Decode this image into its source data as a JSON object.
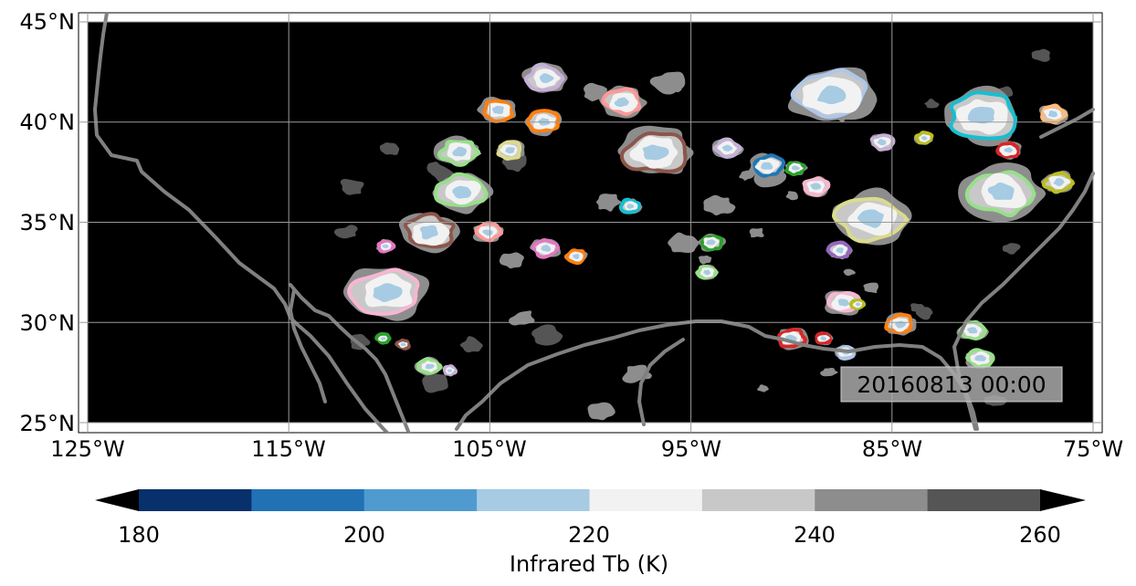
{
  "map": {
    "lat_labels": [
      "45°N",
      "40°N",
      "35°N",
      "30°N",
      "25°N"
    ],
    "lon_labels": [
      "125°W",
      "115°W",
      "105°W",
      "95°W",
      "85°W",
      "75°W"
    ],
    "lon_range": [
      -125,
      -75
    ],
    "lat_range": [
      24.5,
      45.5
    ],
    "gridlines": true,
    "background_color": "#000000",
    "coastline_color": "#808080",
    "timestamp": "20160813 00:00",
    "timestamp_position": "bottom-right"
  },
  "colorbar": {
    "label": "Infrared Tb (K)",
    "ticks": [
      "180",
      "200",
      "220",
      "240",
      "260"
    ],
    "range": [
      180,
      260
    ],
    "levels": [
      180,
      190,
      200,
      210,
      220,
      230,
      240,
      250,
      260
    ],
    "colors": [
      "#08306b",
      "#2171b5",
      "#4f9bcf",
      "#a6cbe3",
      "#f2f2f2",
      "#c8c8c8",
      "#8d8d8d",
      "#555555"
    ],
    "extend": "both",
    "low_extend_color": "#000000",
    "high_extend_color": "#000000"
  },
  "cloud_systems": [
    {
      "lon": -102.2,
      "lat": 42.2,
      "outline": "#c5b0d5"
    },
    {
      "lon": -104.6,
      "lat": 40.6,
      "outline": "#ff7f0e"
    },
    {
      "lon": -102.3,
      "lat": 40.0,
      "outline": "#ff7f0e"
    },
    {
      "lon": -98.4,
      "lat": 41.0,
      "outline": "#ff9896"
    },
    {
      "lon": -96.8,
      "lat": 38.5,
      "outline": "#8c564b"
    },
    {
      "lon": -88.0,
      "lat": 41.3,
      "outline": "#aec7e8"
    },
    {
      "lon": -80.5,
      "lat": 40.3,
      "outline": "#17becf"
    },
    {
      "lon": -77.0,
      "lat": 40.4,
      "outline": "#ffbb78"
    },
    {
      "lon": -106.5,
      "lat": 38.5,
      "outline": "#98df8a"
    },
    {
      "lon": -104.0,
      "lat": 38.6,
      "outline": "#dbdb8d"
    },
    {
      "lon": -106.4,
      "lat": 36.5,
      "outline": "#98df8a"
    },
    {
      "lon": -91.2,
      "lat": 37.8,
      "outline": "#1f77b4"
    },
    {
      "lon": -89.8,
      "lat": 37.7,
      "outline": "#2ca02c"
    },
    {
      "lon": -93.2,
      "lat": 38.7,
      "outline": "#c5b0d5"
    },
    {
      "lon": -85.5,
      "lat": 39.0,
      "outline": "#c5b0d5"
    },
    {
      "lon": -83.4,
      "lat": 39.2,
      "outline": "#bcbd22"
    },
    {
      "lon": -79.2,
      "lat": 38.6,
      "outline": "#d62728"
    },
    {
      "lon": -86.0,
      "lat": 35.2,
      "outline": "#dbdb8d"
    },
    {
      "lon": -79.5,
      "lat": 36.5,
      "outline": "#98df8a"
    },
    {
      "lon": -76.7,
      "lat": 37.0,
      "outline": "#bcbd22"
    },
    {
      "lon": -88.8,
      "lat": 36.8,
      "outline": "#f7b6d2"
    },
    {
      "lon": -108.0,
      "lat": 34.5,
      "outline": "#8c564b"
    },
    {
      "lon": -105.1,
      "lat": 34.5,
      "outline": "#ff9896"
    },
    {
      "lon": -110.1,
      "lat": 31.5,
      "outline": "#f7b6d2"
    },
    {
      "lon": -102.2,
      "lat": 33.7,
      "outline": "#e377c2"
    },
    {
      "lon": -100.7,
      "lat": 33.3,
      "outline": "#ff7f0e"
    },
    {
      "lon": -98.0,
      "lat": 35.8,
      "outline": "#17becf"
    },
    {
      "lon": -94.0,
      "lat": 34.0,
      "outline": "#2ca02c"
    },
    {
      "lon": -94.2,
      "lat": 32.5,
      "outline": "#98df8a"
    },
    {
      "lon": -87.6,
      "lat": 33.6,
      "outline": "#9467bd"
    },
    {
      "lon": -87.4,
      "lat": 31.0,
      "outline": "#f7b6d2"
    },
    {
      "lon": -86.7,
      "lat": 30.9,
      "outline": "#bcbd22"
    },
    {
      "lon": -84.6,
      "lat": 29.9,
      "outline": "#ff7f0e"
    },
    {
      "lon": -81.0,
      "lat": 29.6,
      "outline": "#98df8a"
    },
    {
      "lon": -80.6,
      "lat": 28.2,
      "outline": "#98df8a"
    },
    {
      "lon": -90.0,
      "lat": 29.2,
      "outline": "#d62728"
    },
    {
      "lon": -88.4,
      "lat": 29.2,
      "outline": "#d62728"
    },
    {
      "lon": -87.3,
      "lat": 28.5,
      "outline": "#aec7e8"
    },
    {
      "lon": -110.2,
      "lat": 33.8,
      "outline": "#e377c2"
    },
    {
      "lon": -110.3,
      "lat": 29.2,
      "outline": "#2ca02c"
    },
    {
      "lon": -109.3,
      "lat": 28.9,
      "outline": "#8c564b"
    },
    {
      "lon": -108.0,
      "lat": 27.8,
      "outline": "#98df8a"
    },
    {
      "lon": -107.0,
      "lat": 27.6,
      "outline": "#c5b0d5"
    }
  ]
}
